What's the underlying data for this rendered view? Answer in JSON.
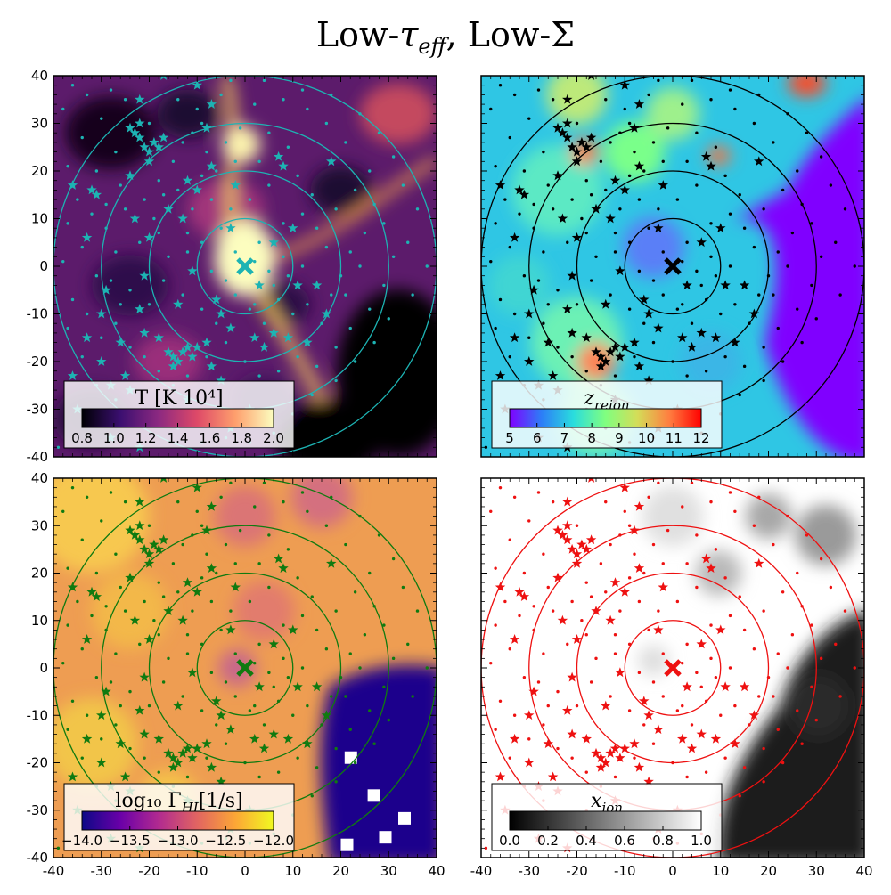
{
  "figure": {
    "title_main": "Low-",
    "title_tau": "τ",
    "title_tau_sub": "eff",
    "title_sep": ", Low-",
    "title_sigma": "Σ"
  },
  "chart_data": [
    {
      "type": "heatmap",
      "panel": "top-left",
      "xlim": [
        -40,
        40
      ],
      "ylim": [
        -40,
        40
      ],
      "x_ticks": [],
      "y_ticks": [
        "-40",
        "-30",
        "-20",
        "-10",
        "0",
        "10",
        "20",
        "30",
        "40"
      ],
      "colormap": "inferno",
      "overlay_color": "#1db3b3",
      "center_marker": [
        0,
        0
      ],
      "circle_radii": [
        10,
        20,
        30,
        40
      ],
      "colorbar": {
        "label": "T [K 10⁴]",
        "label_italic": false,
        "ticks": [
          "0.8",
          "1.0",
          "1.2",
          "1.4",
          "1.6",
          "1.8",
          "2.0"
        ],
        "range": [
          0.8,
          2.0
        ],
        "stops": [
          "#000004",
          "#3b0f70",
          "#8c2981",
          "#de4968",
          "#fe9f6d",
          "#fcfdbf"
        ]
      }
    },
    {
      "type": "heatmap",
      "panel": "top-right",
      "xlim": [
        -40,
        40
      ],
      "ylim": [
        -40,
        40
      ],
      "x_ticks": [],
      "y_ticks": [],
      "colormap": "rainbow",
      "overlay_color": "#000000",
      "center_marker": [
        0,
        0
      ],
      "circle_radii": [
        10,
        20,
        30,
        40
      ],
      "colorbar": {
        "label": "z",
        "label_sub": "reion",
        "label_italic": true,
        "ticks": [
          "5",
          "6",
          "7",
          "8",
          "9",
          "10",
          "11",
          "12"
        ],
        "range": [
          5,
          12
        ],
        "stops": [
          "#8000ff",
          "#2c7ef7",
          "#2adddd",
          "#80ff80",
          "#d4dd58",
          "#ff7e40",
          "#ff0000"
        ]
      }
    },
    {
      "type": "heatmap",
      "panel": "bottom-left",
      "xlim": [
        -40,
        40
      ],
      "ylim": [
        -40,
        40
      ],
      "x_ticks": [
        "-40",
        "-30",
        "-20",
        "-10",
        "0",
        "10",
        "20",
        "30",
        "40"
      ],
      "y_ticks": [
        "-40",
        "-30",
        "-20",
        "-10",
        "0",
        "10",
        "20",
        "30",
        "40"
      ],
      "colormap": "plasma",
      "overlay_color": "#107a10",
      "center_marker": [
        0,
        0
      ],
      "circle_radii": [
        10,
        20,
        30,
        40
      ],
      "colorbar": {
        "label": "log₁₀ Γ",
        "label_sub": "HI",
        "label_tail": "[1/s]",
        "label_italic": false,
        "ticks": [
          "−14.0",
          "−13.5",
          "−13.0",
          "−12.5",
          "−12.0"
        ],
        "range": [
          -14.0,
          -12.0
        ],
        "stops": [
          "#0d0887",
          "#6a00a8",
          "#b12a90",
          "#e16462",
          "#fca636",
          "#f0f921"
        ]
      }
    },
    {
      "type": "heatmap",
      "panel": "bottom-right",
      "xlim": [
        -40,
        40
      ],
      "ylim": [
        -40,
        40
      ],
      "x_ticks": [
        "-40",
        "-30",
        "-20",
        "-10",
        "0",
        "10",
        "20",
        "30",
        "40"
      ],
      "y_ticks": [],
      "colormap": "gray",
      "overlay_color": "#ee1111",
      "center_marker": [
        0,
        0
      ],
      "circle_radii": [
        10,
        20,
        30,
        40
      ],
      "colorbar": {
        "label": "x",
        "label_sub": "ion",
        "label_italic": true,
        "ticks": [
          "0.0",
          "0.2",
          "0.4",
          "0.6",
          "0.8",
          "1.0"
        ],
        "range": [
          0.0,
          1.0
        ],
        "stops": [
          "#000000",
          "#ffffff"
        ]
      }
    }
  ],
  "sources": {
    "stars": [
      [
        -24,
        29
      ],
      [
        -23,
        28
      ],
      [
        -22,
        27
      ],
      [
        -21,
        25
      ],
      [
        -20,
        24
      ],
      [
        -19,
        26
      ],
      [
        -18,
        25
      ],
      [
        -22,
        30
      ],
      [
        -17,
        27
      ],
      [
        -20,
        22
      ],
      [
        -32,
        16
      ],
      [
        -31,
        15
      ],
      [
        -7,
        21
      ],
      [
        -2,
        17
      ],
      [
        7,
        23
      ],
      [
        8,
        21
      ],
      [
        18,
        22
      ],
      [
        -16,
        -18
      ],
      [
        -15,
        -19
      ],
      [
        -14,
        -20
      ],
      [
        -13,
        -18
      ],
      [
        -12,
        -17
      ],
      [
        -11,
        -19
      ],
      [
        -10,
        -17
      ],
      [
        -15,
        -21
      ],
      [
        -29,
        -5
      ],
      [
        -30,
        -10
      ],
      [
        -25,
        -23
      ],
      [
        -19,
        -33
      ],
      [
        -7,
        -21
      ],
      [
        -5,
        -24
      ],
      [
        -22,
        -38
      ],
      [
        -28,
        -36
      ],
      [
        -8,
        -16
      ],
      [
        -3,
        -13
      ],
      [
        2,
        -15
      ],
      [
        6,
        -14
      ],
      [
        9,
        -15
      ],
      [
        13,
        -16
      ],
      [
        -11,
        -1
      ],
      [
        -21,
        -14
      ],
      [
        -10,
        16
      ],
      [
        -12,
        18
      ],
      [
        -3,
        -34
      ],
      [
        -20,
        6
      ],
      [
        -22,
        -9
      ],
      [
        -21,
        -2
      ],
      [
        -23,
        10
      ],
      [
        -6,
        -7
      ],
      [
        11,
        -4
      ],
      [
        15,
        -4
      ],
      [
        -18,
        -15
      ],
      [
        -24,
        -26
      ],
      [
        4,
        -17
      ],
      [
        17,
        -10
      ],
      [
        -30,
        -20
      ],
      [
        -28,
        -25
      ],
      [
        -36,
        -23
      ],
      [
        -26,
        -16
      ],
      [
        -14,
        -8
      ],
      [
        -17,
        40
      ],
      [
        -10,
        38
      ],
      [
        -7,
        34
      ],
      [
        -22,
        35
      ],
      [
        -36,
        17
      ],
      [
        -33,
        -15
      ],
      [
        -35,
        -30
      ],
      [
        -12,
        -28
      ],
      [
        1,
        -30
      ],
      [
        -7,
        -32
      ],
      [
        -33,
        6
      ],
      [
        -13,
        10
      ],
      [
        -24,
        19
      ],
      [
        -5,
        -10
      ],
      [
        -3,
        8
      ],
      [
        -16,
        12
      ],
      [
        -8,
        29
      ],
      [
        3,
        -4
      ],
      [
        6,
        5
      ],
      [
        10,
        8
      ]
    ],
    "dots": [
      [
        -20,
        30
      ],
      [
        -25,
        35
      ],
      [
        -30,
        31
      ],
      [
        -14,
        35
      ],
      [
        -10,
        33
      ],
      [
        -9,
        30
      ],
      [
        -5,
        36
      ],
      [
        2,
        34
      ],
      [
        8,
        35
      ],
      [
        5,
        28
      ],
      [
        9,
        25
      ],
      [
        11,
        19
      ],
      [
        14,
        15
      ],
      [
        12,
        11
      ],
      [
        8,
        9
      ],
      [
        3,
        5
      ],
      [
        -2,
        3
      ],
      [
        -5,
        8
      ],
      [
        -9,
        5
      ],
      [
        -12,
        3
      ],
      [
        -16,
        2
      ],
      [
        -18,
        7
      ],
      [
        -22,
        5
      ],
      [
        -27,
        3
      ],
      [
        -29,
        8
      ],
      [
        -32,
        11
      ],
      [
        -34,
        4
      ],
      [
        -28,
        -3
      ],
      [
        -24,
        -5
      ],
      [
        -20,
        -8
      ],
      [
        -17,
        -3
      ],
      [
        -13,
        -6
      ],
      [
        -9,
        -9
      ],
      [
        -6,
        -12
      ],
      [
        -2,
        -6
      ],
      [
        1,
        -9
      ],
      [
        4,
        -12
      ],
      [
        7,
        -7
      ],
      [
        10,
        -10
      ],
      [
        13,
        -8
      ],
      [
        16,
        -12
      ],
      [
        18,
        -6
      ],
      [
        20,
        -2
      ],
      [
        22,
        3
      ],
      [
        25,
        7
      ],
      [
        19,
        12
      ],
      [
        23,
        16
      ],
      [
        26,
        20
      ],
      [
        21,
        26
      ],
      [
        17,
        30
      ],
      [
        13,
        33
      ],
      [
        24,
        32
      ],
      [
        28,
        28
      ],
      [
        31,
        23
      ],
      [
        33,
        17
      ],
      [
        36,
        12
      ],
      [
        34,
        5
      ],
      [
        38,
        0
      ],
      [
        35,
        -6
      ],
      [
        30,
        -11
      ],
      [
        27,
        -16
      ],
      [
        23,
        -20
      ],
      [
        19,
        -24
      ],
      [
        14,
        -27
      ],
      [
        10,
        -31
      ],
      [
        6,
        -35
      ],
      [
        1,
        -37
      ],
      [
        -4,
        -36
      ],
      [
        -9,
        -37
      ],
      [
        -14,
        -34
      ],
      [
        -18,
        -30
      ],
      [
        -23,
        -31
      ],
      [
        -27,
        -28
      ],
      [
        -31,
        -25
      ],
      [
        -34,
        -19
      ],
      [
        -37,
        -13
      ],
      [
        -36,
        -7
      ],
      [
        -38,
        1
      ],
      [
        -37,
        9
      ],
      [
        -35,
        14
      ],
      [
        -31,
        20
      ],
      [
        -27,
        24
      ],
      [
        -15,
        22
      ],
      [
        -13,
        26
      ],
      [
        -11,
        28
      ],
      [
        -8,
        24
      ],
      [
        -4,
        26
      ],
      [
        -1,
        29
      ],
      [
        3,
        22
      ],
      [
        5,
        17
      ],
      [
        1,
        14
      ],
      [
        -3,
        12
      ],
      [
        -7,
        14
      ],
      [
        -11,
        12
      ],
      [
        -14,
        16
      ],
      [
        -18,
        18
      ],
      [
        -21,
        14
      ],
      [
        -25,
        12
      ],
      [
        -26,
        17
      ],
      [
        -29,
        13
      ],
      [
        -7,
        -1
      ],
      [
        -4,
        -3
      ],
      [
        -1,
        -1
      ],
      [
        2,
        1
      ],
      [
        5,
        -1
      ],
      [
        8,
        2
      ],
      [
        6,
        -4
      ],
      [
        2,
        -8
      ],
      [
        -4,
        -16
      ],
      [
        -8,
        -19
      ],
      [
        -12,
        -23
      ],
      [
        -15,
        -25
      ],
      [
        -18,
        -22
      ],
      [
        -21,
        -19
      ],
      [
        -24,
        -17
      ],
      [
        -27,
        -12
      ],
      [
        -30,
        -15
      ],
      [
        -33,
        -10
      ],
      [
        -31,
        -2
      ],
      [
        -26,
        -8
      ],
      [
        0,
        -20
      ],
      [
        3,
        -23
      ],
      [
        7,
        -22
      ],
      [
        11,
        -19
      ],
      [
        15,
        -21
      ],
      [
        19,
        -17
      ],
      [
        22,
        -13
      ],
      [
        26,
        -9
      ],
      [
        29,
        -4
      ],
      [
        31,
        2
      ],
      [
        29,
        9
      ],
      [
        27,
        13
      ],
      [
        24,
        0
      ],
      [
        21,
        -6
      ],
      [
        17,
        4
      ],
      [
        15,
        8
      ],
      [
        12,
        0
      ],
      [
        9,
        -2
      ],
      [
        -39,
        -38
      ],
      [
        -38,
        33
      ],
      [
        -34,
        27
      ],
      [
        -37,
        21
      ],
      [
        -3,
        39
      ],
      [
        4,
        39
      ],
      [
        12,
        37
      ],
      [
        18,
        36
      ],
      [
        -19,
        10
      ],
      [
        -17,
        15
      ],
      [
        -12,
        7
      ],
      [
        -9,
        19
      ],
      [
        -6,
        20
      ],
      [
        -2,
        22
      ],
      [
        -28,
        37
      ],
      [
        -33,
        36
      ],
      [
        -36,
        38
      ]
    ]
  }
}
